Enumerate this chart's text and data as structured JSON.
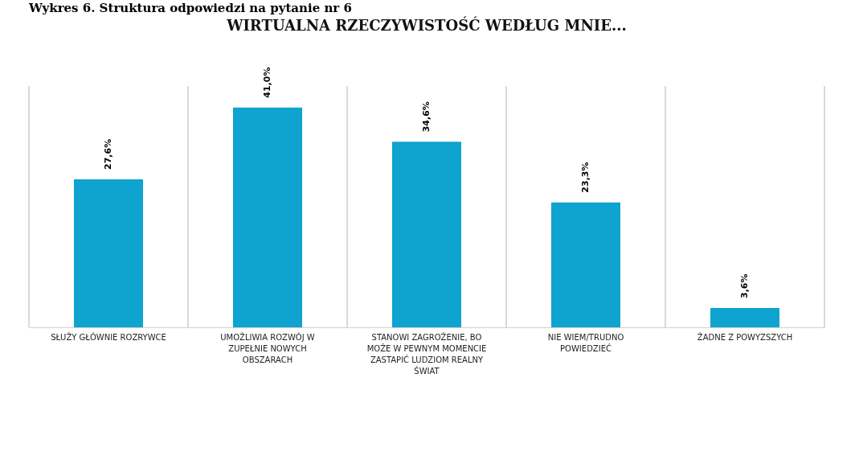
{
  "chart_data": {
    "type": "bar",
    "title": "WIRTUALNA RZECZYWISTOŚĆ WEDŁUG MNIE...",
    "annotations": [
      "Wykres 6. Struktura odpowiedzi na pytanie nr 6"
    ],
    "categories": [
      "SŁUŻY GŁÓWNIE ROZRYWCE",
      "UMOŻLIWIA ROZWÓJ W ZUPEŁNIE NOWYCH OBSZARACH",
      "STANOWI ZAGROŻENIE, BO MOŻE W PEWNYM MOMENCIE ZASTAPIĆ LUDZIOM REALNY ŚWIAT",
      "NIE WIEM/TRUDNO POWIEDZIEĆ",
      "ŻADNE Z POWYZSZYCH"
    ],
    "series": [
      {
        "color": "#0fa3cf",
        "values": [
          27.6,
          41.0,
          34.6,
          23.3,
          3.6
        ],
        "value_labels": [
          "27,6%",
          "41,0%",
          "34,6%",
          "23,3%",
          "3,6%"
        ]
      }
    ],
    "grid": "x"
  }
}
